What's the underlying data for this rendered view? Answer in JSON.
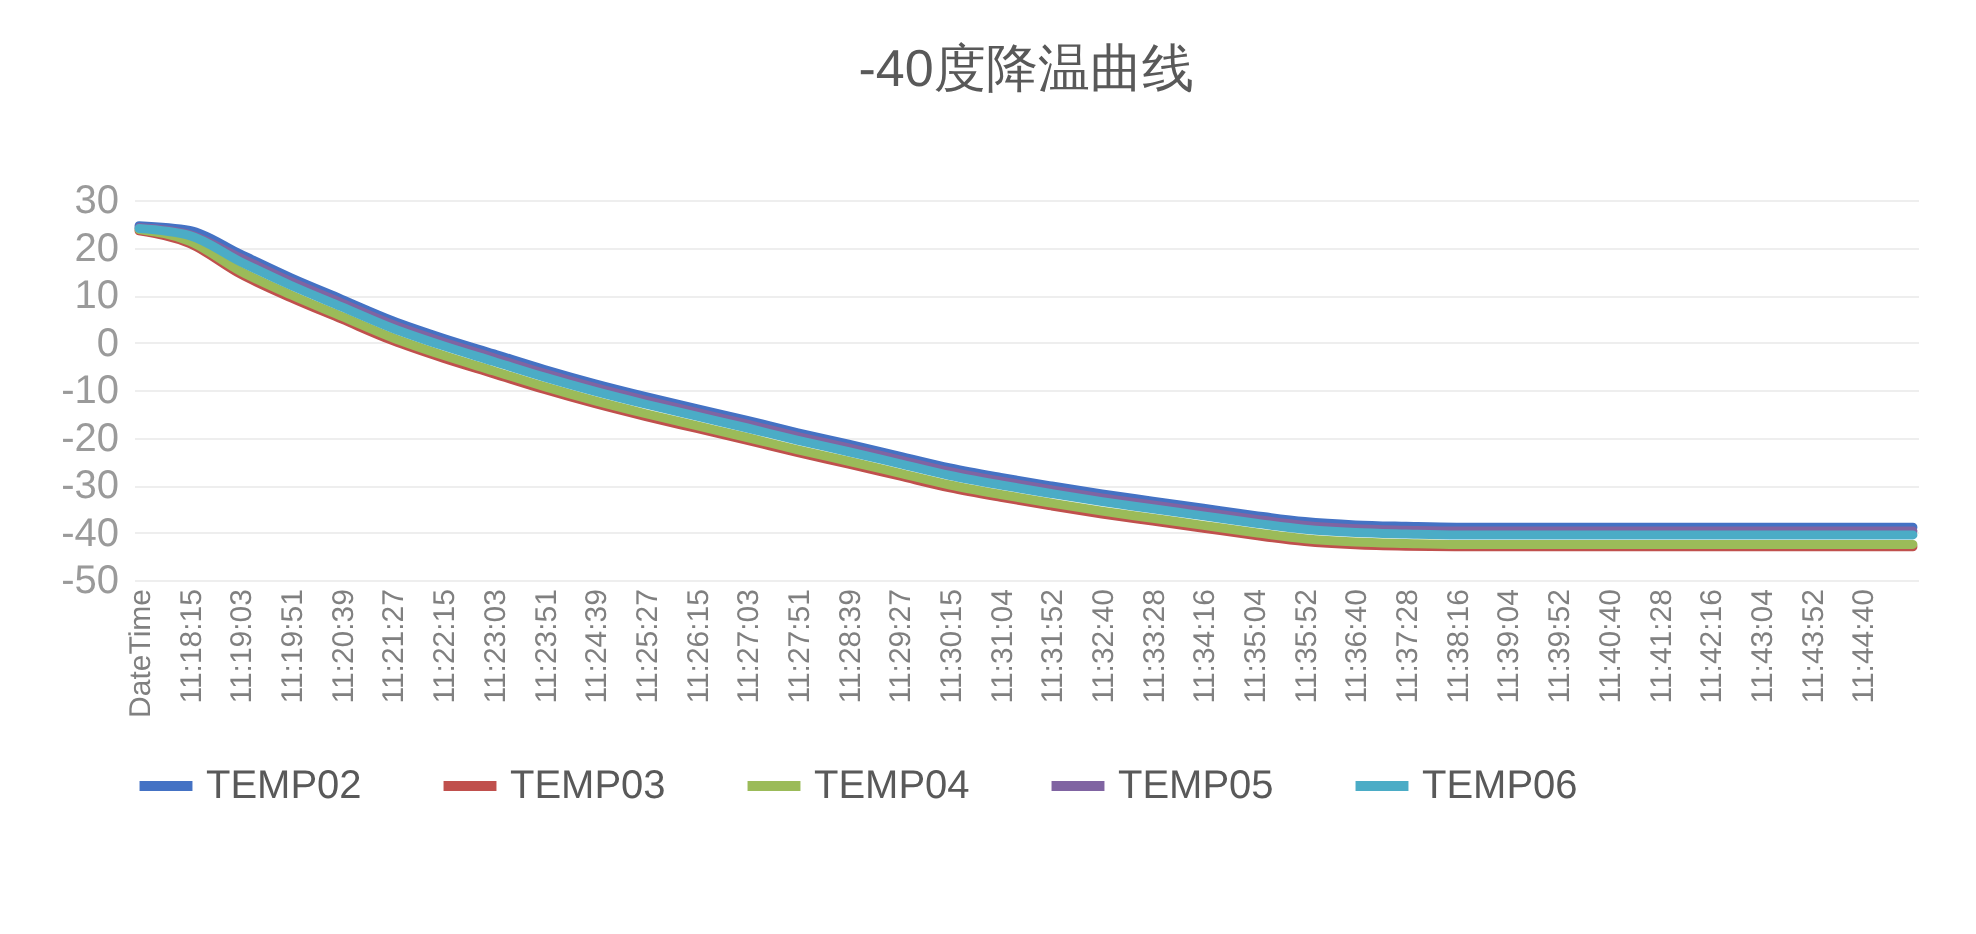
{
  "chart_data": {
    "type": "line",
    "title": "-40度降温曲线",
    "categories": [
      "DateTime",
      "11:18:15",
      "11:19:03",
      "11:19:51",
      "11:20:39",
      "11:21:27",
      "11:22:15",
      "11:23:03",
      "11:23:51",
      "11:24:39",
      "11:25:27",
      "11:26:15",
      "11:27:03",
      "11:27:51",
      "11:28:39",
      "11:29:27",
      "11:30:15",
      "11:31:04",
      "11:31:52",
      "11:32:40",
      "11:33:28",
      "11:34:16",
      "11:35:04",
      "11:35:52",
      "11:36:40",
      "11:37:28",
      "11:38:16",
      "11:39:04",
      "11:39:52",
      "11:40:40",
      "11:41:28",
      "11:42:16",
      "11:43:04",
      "11:43:52",
      "11:44:40",
      null
    ],
    "series": [
      {
        "name": "TEMP02",
        "color": "#4472c4",
        "values": [
          24.6,
          23.6,
          18.6,
          13.6,
          9.1,
          4.6,
          0.9,
          -2.4,
          -5.7,
          -8.7,
          -11.4,
          -13.9,
          -16.4,
          -19,
          -21.4,
          -23.9,
          -26.4,
          -28.4,
          -30.2,
          -31.9,
          -33.4,
          -34.9,
          -36.4,
          -37.7,
          -38.4,
          -38.7,
          -38.9,
          -38.9,
          -38.9,
          -38.9,
          -38.9,
          -38.9,
          -38.9,
          -38.9,
          -38.9,
          -38.9
        ]
      },
      {
        "name": "TEMP03",
        "color": "#c0504d",
        "values": [
          23.5,
          20.8,
          14.4,
          9.4,
          4.9,
          0.4,
          -3.3,
          -6.6,
          -9.9,
          -12.9,
          -15.6,
          -18.1,
          -20.6,
          -23.2,
          -25.6,
          -28.1,
          -30.6,
          -32.6,
          -34.4,
          -36.1,
          -37.6,
          -39.1,
          -40.6,
          -41.9,
          -42.6,
          -42.9,
          -43,
          -43,
          -43,
          -43,
          -43,
          -43,
          -43,
          -43,
          -43,
          -43
        ]
      },
      {
        "name": "TEMP04",
        "color": "#9bbb59",
        "values": [
          23.8,
          21.3,
          15,
          10,
          5.5,
          1,
          -2.7,
          -6,
          -9.3,
          -12.3,
          -15,
          -17.5,
          -20,
          -22.6,
          -25,
          -27.5,
          -30,
          -32,
          -33.8,
          -35.5,
          -37,
          -38.5,
          -40,
          -41.3,
          -42,
          -42.3,
          -42.5,
          -42.5,
          -42.5,
          -42.5,
          -42.5,
          -42.5,
          -42.5,
          -42.5,
          -42.5,
          -42.5
        ]
      },
      {
        "name": "TEMP05",
        "color": "#8064a2",
        "values": [
          24.2,
          22.7,
          17.8,
          12.8,
          8.3,
          3.8,
          0.1,
          -3.2,
          -6.5,
          -9.5,
          -12.2,
          -14.7,
          -17.2,
          -19.8,
          -22.2,
          -24.7,
          -27.2,
          -29.2,
          -31,
          -32.7,
          -34.2,
          -35.7,
          -37.2,
          -38.5,
          -39.2,
          -39.5,
          -39.7,
          -39.7,
          -39.7,
          -39.7,
          -39.7,
          -39.7,
          -39.7,
          -39.7,
          -39.7,
          -39.7
        ]
      },
      {
        "name": "TEMP06",
        "color": "#4bacc6",
        "values": [
          24,
          22.5,
          17,
          12,
          7.5,
          3,
          -0.7,
          -4,
          -7.3,
          -10.3,
          -13,
          -15.5,
          -18,
          -20.6,
          -23,
          -25.5,
          -28,
          -30,
          -31.8,
          -33.5,
          -35,
          -36.5,
          -38,
          -39.3,
          -40,
          -40.3,
          -40.5,
          -40.5,
          -40.5,
          -40.5,
          -40.5,
          -40.5,
          -40.5,
          -40.5,
          -40.5,
          -40.5
        ]
      }
    ],
    "ylim": [
      -50,
      30
    ],
    "yticks": [
      -50,
      -40,
      -30,
      -20,
      -10,
      0,
      10,
      20,
      30
    ],
    "grid": "y",
    "legend": "bottom",
    "marker": "none",
    "line_style": "solid"
  }
}
